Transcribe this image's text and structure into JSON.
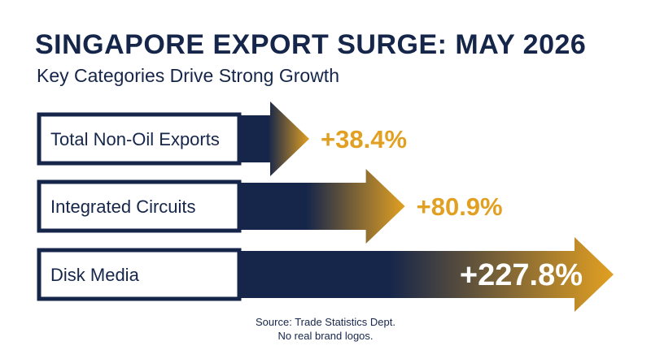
{
  "title": "SINGAPORE EXPORT SURGE: MAY 2026",
  "subtitle": "Key Categories Drive Strong Growth",
  "source_lines": [
    "Source: Trade Statistics Dept.",
    "No real brand logos."
  ],
  "colors": {
    "navy": "#16264a",
    "gold": "#e2a022",
    "white": "#ffffff"
  },
  "chart_data": {
    "type": "bar",
    "orientation": "horizontal",
    "categories": [
      "Total Non-Oil Exports",
      "Integrated Circuits",
      "Disk Media"
    ],
    "values": [
      38.4,
      80.9,
      227.8
    ],
    "value_labels": [
      "+38.4%",
      "+80.9%",
      "+227.8%"
    ],
    "unit": "%",
    "title": "SINGAPORE EXPORT SURGE: MAY 2026",
    "subtitle": "Key Categories Drive Strong Growth",
    "grid": false,
    "legend": "none"
  }
}
